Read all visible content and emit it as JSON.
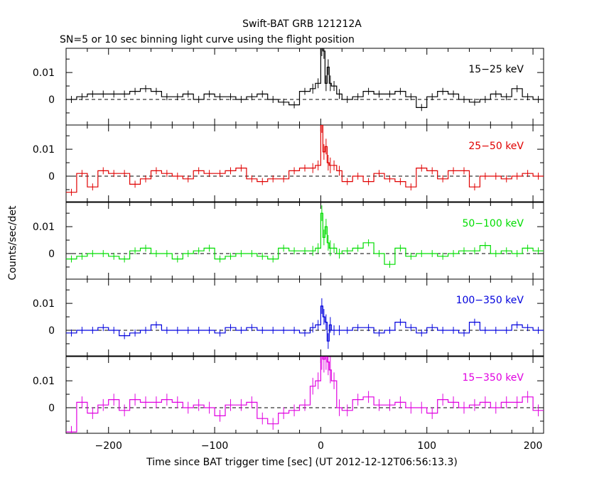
{
  "title": "Swift-BAT GRB 121212A",
  "subtitle": "SN=5 or 10 sec binning light curve using the flight position",
  "xlabel": "Time since BAT trigger time [sec] (UT 2012-12-12T06:56:13.3)",
  "ylabel": "Counts/sec/det",
  "chart_data": {
    "type": "line",
    "x_range": [
      -240,
      210
    ],
    "y_range": [
      -0.0095,
      0.019
    ],
    "x_ticks": [
      -200,
      -100,
      0,
      100,
      200
    ],
    "x_tick_labels": [
      "−200",
      "−100",
      "0",
      "100",
      "200"
    ],
    "y_ticks": [
      0,
      0.01
    ],
    "y_tick_labels": [
      "0",
      "0.01"
    ],
    "baseline_dashed": true,
    "bins": {
      "x_edges": [
        -240,
        -230,
        -220,
        -210,
        -200,
        -190,
        -180,
        -170,
        -160,
        -150,
        -140,
        -130,
        -120,
        -110,
        -100,
        -90,
        -80,
        -70,
        -60,
        -50,
        -40,
        -30,
        -20,
        -10,
        -5,
        0,
        2,
        4,
        6,
        8,
        10,
        15,
        20,
        30,
        40,
        50,
        60,
        70,
        80,
        90,
        100,
        110,
        120,
        130,
        140,
        150,
        160,
        170,
        180,
        190,
        200,
        210
      ]
    },
    "panels": [
      {
        "name": "15–25 keV",
        "label": "15−25 keV",
        "color": "#000000",
        "values": [
          0.0,
          0.001,
          0.002,
          0.002,
          0.002,
          0.002,
          0.003,
          0.004,
          0.003,
          0.001,
          0.001,
          0.002,
          0.0,
          0.002,
          0.001,
          0.001,
          0.0,
          0.001,
          0.002,
          0.0,
          -0.001,
          -0.002,
          0.003,
          0.004,
          0.006,
          0.019,
          0.018,
          0.006,
          0.012,
          0.006,
          0.005,
          0.002,
          0.0,
          0.001,
          0.003,
          0.002,
          0.002,
          0.003,
          0.001,
          -0.003,
          0.001,
          0.003,
          0.002,
          0.0,
          -0.001,
          0.0,
          0.002,
          0.001,
          0.004,
          0.001,
          0.0
        ]
      },
      {
        "name": "25–50 keV",
        "label": "25−50 keV",
        "color": "#e00000",
        "values": [
          -0.006,
          0.001,
          -0.004,
          0.002,
          0.001,
          0.001,
          -0.003,
          -0.001,
          0.002,
          0.001,
          0.0,
          -0.001,
          0.002,
          0.001,
          0.001,
          0.002,
          0.003,
          -0.001,
          -0.002,
          -0.001,
          -0.001,
          0.002,
          0.003,
          0.003,
          0.004,
          0.019,
          0.009,
          0.011,
          0.005,
          0.004,
          0.004,
          0.002,
          -0.002,
          0.0,
          -0.002,
          0.001,
          -0.001,
          -0.002,
          -0.004,
          0.003,
          0.002,
          -0.001,
          0.002,
          0.002,
          -0.004,
          0.0,
          0.0,
          -0.001,
          0.0,
          0.001,
          0.0
        ]
      },
      {
        "name": "50–100 keV",
        "label": "50−100 keV",
        "color": "#00dd00",
        "values": [
          -0.002,
          -0.001,
          0.0,
          0.0,
          -0.001,
          -0.002,
          0.001,
          0.002,
          0.0,
          0.0,
          -0.002,
          0.0,
          0.001,
          0.002,
          -0.002,
          -0.001,
          0.0,
          0.0,
          -0.001,
          -0.002,
          0.002,
          0.001,
          0.001,
          0.001,
          0.002,
          0.015,
          0.006,
          0.01,
          0.004,
          0.002,
          0.002,
          0.0,
          0.001,
          0.002,
          0.004,
          0.0,
          -0.004,
          0.002,
          -0.001,
          0.0,
          0.0,
          -0.001,
          0.0,
          0.001,
          0.001,
          0.003,
          0.0,
          0.001,
          0.0,
          0.002,
          0.001
        ]
      },
      {
        "name": "100–350 keV",
        "label": "100−350 keV",
        "color": "#0000dd",
        "values": [
          -0.001,
          0.0,
          0.0,
          0.001,
          0.0,
          -0.002,
          -0.001,
          0.0,
          0.002,
          0.0,
          0.0,
          0.0,
          0.0,
          0.0,
          -0.001,
          0.001,
          0.0,
          0.001,
          0.0,
          0.0,
          0.0,
          0.0,
          -0.001,
          0.001,
          0.002,
          0.009,
          0.005,
          0.003,
          -0.004,
          0.002,
          0.0,
          0.0,
          0.0,
          0.001,
          0.001,
          -0.001,
          0.0,
          0.003,
          0.001,
          -0.001,
          0.001,
          0.0,
          0.0,
          -0.001,
          0.003,
          0.0,
          0.0,
          0.0,
          0.002,
          0.001,
          0.0
        ]
      },
      {
        "name": "15–350 keV",
        "label": "15−350 keV",
        "color": "#e000e0",
        "values": [
          -0.009,
          0.002,
          -0.002,
          0.001,
          0.003,
          -0.001,
          0.003,
          0.002,
          0.002,
          0.003,
          0.002,
          0.0,
          0.001,
          0.0,
          -0.003,
          0.001,
          0.001,
          0.002,
          -0.004,
          -0.006,
          -0.002,
          -0.001,
          0.001,
          0.008,
          0.01,
          0.019,
          0.018,
          0.019,
          0.017,
          0.014,
          0.01,
          0.0,
          -0.001,
          0.003,
          0.004,
          0.001,
          0.001,
          0.002,
          0.0,
          0.0,
          -0.002,
          0.003,
          0.002,
          0.0,
          0.001,
          0.002,
          0.0,
          0.002,
          0.002,
          0.004,
          -0.001
        ]
      }
    ]
  }
}
